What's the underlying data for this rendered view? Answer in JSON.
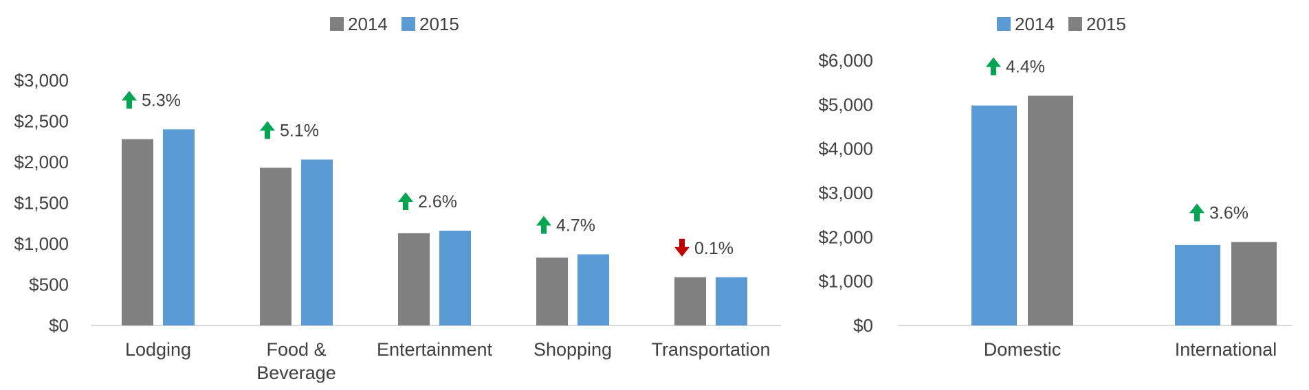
{
  "chart_data": [
    {
      "type": "bar",
      "categories": [
        "Lodging",
        "Food & Beverage",
        "Entertainment",
        "Shopping",
        "Transportation"
      ],
      "category_lines": [
        [
          "Lodging"
        ],
        [
          "Food &",
          "Beverage"
        ],
        [
          "Entertainment"
        ],
        [
          "Shopping"
        ],
        [
          "Transportation"
        ]
      ],
      "series": [
        {
          "name": "2014",
          "color": "#808080",
          "values": [
            2280,
            1930,
            1130,
            830,
            590
          ]
        },
        {
          "name": "2015",
          "color": "#5B9BD5",
          "values": [
            2400,
            2030,
            1160,
            870,
            590
          ]
        }
      ],
      "ylim": [
        0,
        3000
      ],
      "yticks": [
        0,
        500,
        1000,
        1500,
        2000,
        2500,
        3000
      ],
      "ytick_labels": [
        "$0",
        "$500",
        "$1,000",
        "$1,500",
        "$2,000",
        "$2,500",
        "$3,000"
      ],
      "annotations": [
        {
          "label": "5.3%",
          "direction": "up"
        },
        {
          "label": "5.1%",
          "direction": "up"
        },
        {
          "label": "2.6%",
          "direction": "up"
        },
        {
          "label": "4.7%",
          "direction": "up"
        },
        {
          "label": "0.1%",
          "direction": "down"
        }
      ],
      "legend": "top-center",
      "grid": false
    },
    {
      "type": "bar",
      "categories": [
        "Domestic",
        "International"
      ],
      "category_lines": [
        [
          "Domestic"
        ],
        [
          "International"
        ]
      ],
      "series": [
        {
          "name": "2014",
          "color": "#5B9BD5",
          "values": [
            4980,
            1820
          ]
        },
        {
          "name": "2015",
          "color": "#808080",
          "values": [
            5200,
            1890
          ]
        }
      ],
      "ylim": [
        0,
        6000
      ],
      "yticks": [
        0,
        1000,
        2000,
        3000,
        4000,
        5000,
        6000
      ],
      "ytick_labels": [
        "$0",
        "$1,000",
        "$2,000",
        "$3,000",
        "$4,000",
        "$5,000",
        "$6,000"
      ],
      "annotations": [
        {
          "label": "4.4%",
          "direction": "up"
        },
        {
          "label": "3.6%",
          "direction": "up"
        }
      ],
      "legend": "top-center",
      "grid": false
    }
  ],
  "colors": {
    "up_arrow": "#00A651",
    "down_arrow": "#C00000",
    "axis": "#D9D9D9"
  }
}
